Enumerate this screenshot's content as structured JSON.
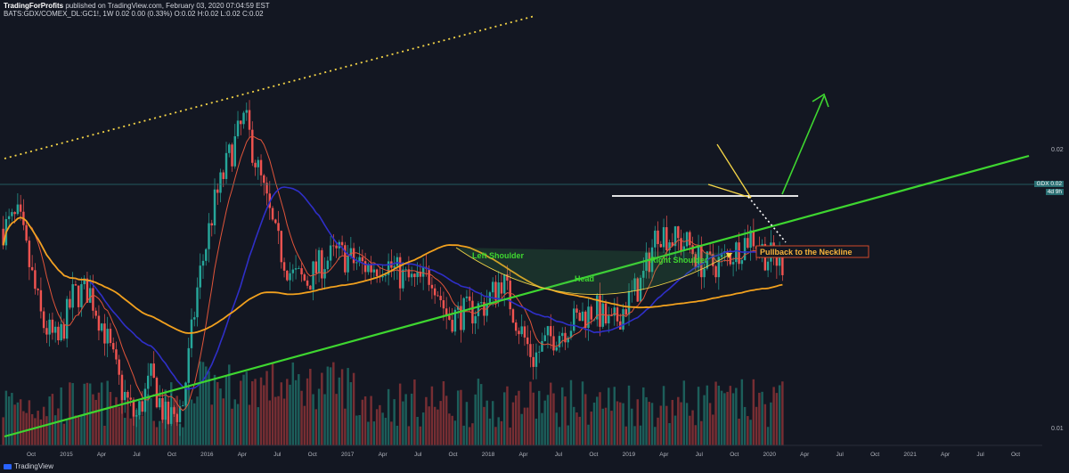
{
  "header": {
    "line1_author": "TradingForProfits",
    "line1_rest": " published on TradingView.com, February 03, 2020 07:04:59 EST",
    "line2": "BATS:GDX/COMEX_DL:GC1!, 1W  0.02 0.00 (0.33%) O:0.02 H:0.02 L:0.02 C:0.02"
  },
  "branding": {
    "logo_text": "TradingView"
  },
  "colors": {
    "background": "#131722",
    "up": "#26a69a",
    "down": "#ef5350",
    "ma_blue": "#2f2fc8",
    "ma_orange": "#f2a11e",
    "ma_red": "#e0543a",
    "trendline": "#3ed630",
    "arrow": "#3ed630",
    "neckline": "#ffffff",
    "wedge": "#f5d547",
    "pattern_label": "#3ed630",
    "callout_text": "#f7b43c",
    "callout_border": "#e5502b"
  },
  "chart_data": {
    "type": "candlestick",
    "symbol": "BATS:GDX/COMEX_DL:GC1!",
    "interval": "1W",
    "y_axis_labels": [
      "0.02",
      "0.01"
    ],
    "last_price_tag": "GDX  0.02",
    "countdown_tag": "4d 9h",
    "x_tick_labels": [
      "Oct",
      "2015",
      "Apr",
      "Jul",
      "Oct",
      "2016",
      "Apr",
      "Jul",
      "Oct",
      "2017",
      "Apr",
      "Jul",
      "Oct",
      "2018",
      "Apr",
      "Jul",
      "Oct",
      "2019",
      "Apr",
      "Jul",
      "Oct",
      "2020",
      "Apr",
      "Jul",
      "Oct",
      "2021",
      "Apr",
      "Jul",
      "Oct"
    ],
    "annotations": {
      "left_shoulder": "Left Shoulder",
      "head": "Head",
      "right_shoulder": "Right Shoulder",
      "callout": "Pullback to the Neckline"
    },
    "price_anchors": [
      [
        0,
        0.0172
      ],
      [
        0.02,
        0.0176
      ],
      [
        0.05,
        0.0138
      ],
      [
        0.07,
        0.013
      ],
      [
        0.09,
        0.0148
      ],
      [
        0.11,
        0.015
      ],
      [
        0.13,
        0.0135
      ],
      [
        0.15,
        0.0115
      ],
      [
        0.17,
        0.0103
      ],
      [
        0.19,
        0.0118
      ],
      [
        0.21,
        0.0102
      ],
      [
        0.23,
        0.0108
      ],
      [
        0.25,
        0.0152
      ],
      [
        0.27,
        0.018
      ],
      [
        0.29,
        0.0198
      ],
      [
        0.31,
        0.0212
      ],
      [
        0.33,
        0.019
      ],
      [
        0.35,
        0.0168
      ],
      [
        0.37,
        0.0155
      ],
      [
        0.39,
        0.0153
      ],
      [
        0.41,
        0.016
      ],
      [
        0.43,
        0.0163
      ],
      [
        0.45,
        0.016
      ],
      [
        0.47,
        0.0158
      ],
      [
        0.49,
        0.016
      ],
      [
        0.51,
        0.0155
      ],
      [
        0.53,
        0.0152
      ],
      [
        0.55,
        0.0156
      ],
      [
        0.57,
        0.014
      ],
      [
        0.6,
        0.0142
      ],
      [
        0.62,
        0.0145
      ],
      [
        0.64,
        0.0154
      ],
      [
        0.66,
        0.0138
      ],
      [
        0.68,
        0.0125
      ],
      [
        0.7,
        0.0132
      ],
      [
        0.72,
        0.0136
      ],
      [
        0.74,
        0.014
      ],
      [
        0.76,
        0.0143
      ],
      [
        0.78,
        0.0136
      ],
      [
        0.8,
        0.0145
      ],
      [
        0.82,
        0.0153
      ],
      [
        0.84,
        0.0172
      ],
      [
        0.86,
        0.0168
      ],
      [
        0.88,
        0.0166
      ],
      [
        0.9,
        0.0158
      ],
      [
        0.92,
        0.016
      ],
      [
        0.94,
        0.0164
      ],
      [
        0.96,
        0.017
      ],
      [
        0.98,
        0.0162
      ],
      [
        1.0,
        0.016
      ]
    ]
  }
}
